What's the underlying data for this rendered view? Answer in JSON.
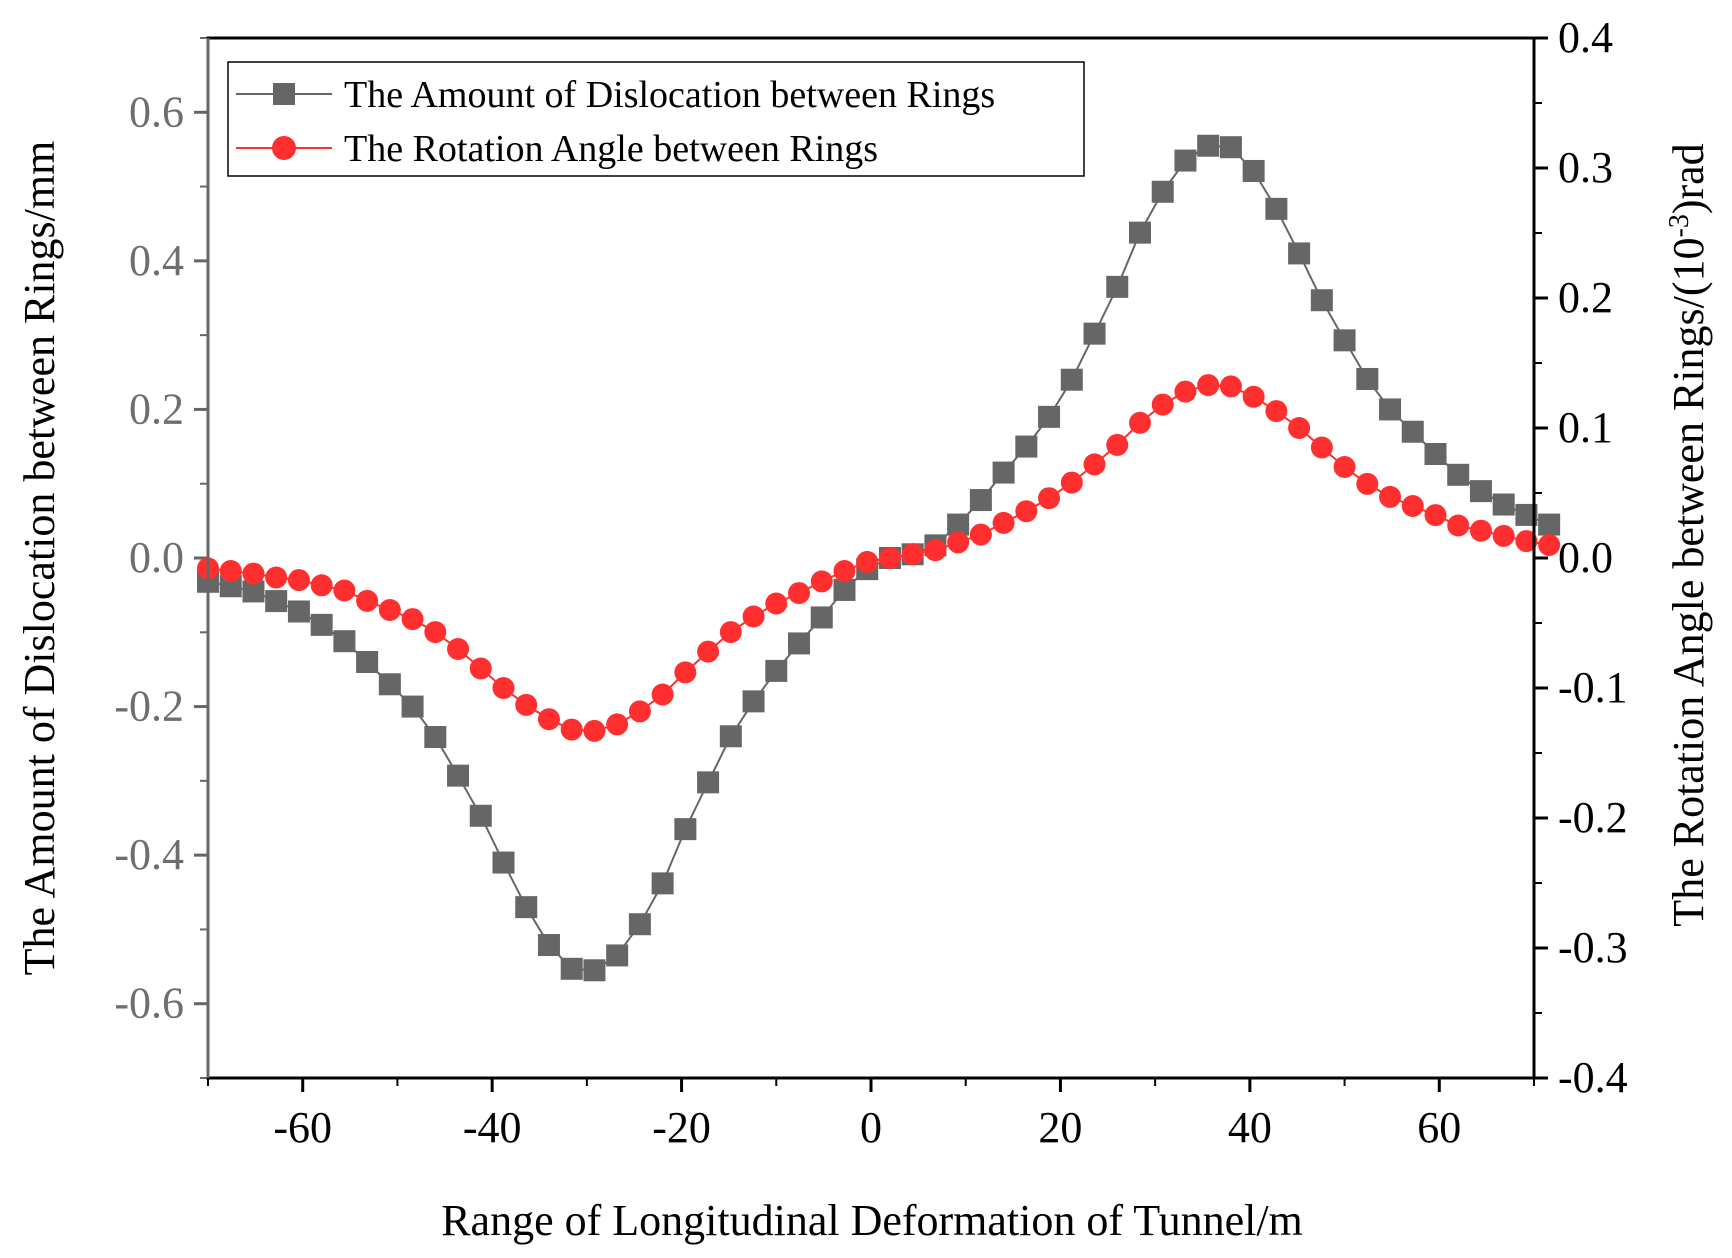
{
  "chart_data": {
    "type": "line",
    "title": "",
    "xlabel": "Range of Longitudinal Deformation of Tunnel/m",
    "ylabel_left": "The Amount of Dislocation between Rings/mm",
    "ylabel_right_prefix": "The Rotation Angle between Rings/(10",
    "ylabel_right_sup": "-3",
    "ylabel_right_suffix": ")rad",
    "xlim": [
      -70,
      70
    ],
    "ylim_left": [
      -0.7,
      0.7
    ],
    "ylim_right": [
      -0.4,
      0.4
    ],
    "x_ticks": [
      -60,
      -40,
      -20,
      0,
      20,
      40,
      60
    ],
    "y_left_ticks": [
      -0.6,
      -0.4,
      -0.2,
      0.0,
      0.2,
      0.4,
      0.6
    ],
    "y_right_ticks": [
      -0.4,
      -0.3,
      -0.2,
      -0.1,
      0.0,
      0.1,
      0.2,
      0.3,
      0.4
    ],
    "y_left_tick_labels": [
      "-0.6",
      "-0.4",
      "-0.2",
      "0.0",
      "0.2",
      "0.4",
      "0.6"
    ],
    "y_right_tick_labels": [
      "-0.4",
      "-0.3",
      "-0.2",
      "-0.1",
      "0.0",
      "0.1",
      "0.2",
      "0.3",
      "0.4"
    ],
    "x_tick_labels": [
      "-60",
      "-40",
      "-20",
      "0",
      "20",
      "40",
      "60"
    ],
    "legend_position": "top-left",
    "series": [
      {
        "name": "The Amount of Dislocation between Rings",
        "axis": "left",
        "color": "#666666",
        "marker": "square",
        "x": [
          -70.0,
          -67.6,
          -65.2,
          -62.8,
          -60.4,
          -58.0,
          -55.6,
          -53.2,
          -50.8,
          -48.4,
          -46.0,
          -43.6,
          -41.2,
          -38.8,
          -36.4,
          -34.0,
          -31.6,
          -29.2,
          -26.8,
          -24.4,
          -22.0,
          -19.6,
          -17.2,
          -14.8,
          -12.4,
          -10.0,
          -7.6,
          -5.2,
          -2.8,
          -0.4,
          2.0,
          4.4,
          6.8,
          9.2,
          11.6,
          14.0,
          16.4,
          18.8,
          21.2,
          23.6,
          26.0,
          28.4,
          30.8,
          33.2,
          35.6,
          38.0,
          40.4,
          42.8,
          45.2,
          47.6,
          50.0,
          52.4,
          54.8,
          57.2,
          59.6,
          62.0,
          64.4,
          66.8,
          69.2,
          71.6
        ],
        "y": [
          -0.032,
          -0.038,
          -0.045,
          -0.058,
          -0.072,
          -0.09,
          -0.112,
          -0.14,
          -0.17,
          -0.2,
          -0.241,
          -0.293,
          -0.347,
          -0.41,
          -0.47,
          -0.521,
          -0.553,
          -0.555,
          -0.535,
          -0.493,
          -0.438,
          -0.365,
          -0.302,
          -0.24,
          -0.193,
          -0.152,
          -0.115,
          -0.08,
          -0.043,
          -0.015,
          0.0,
          0.005,
          0.017,
          0.045,
          0.078,
          0.115,
          0.15,
          0.19,
          0.24,
          0.302,
          0.365,
          0.438,
          0.493,
          0.535,
          0.555,
          0.553,
          0.521,
          0.47,
          0.41,
          0.347,
          0.293,
          0.241,
          0.2,
          0.17,
          0.14,
          0.112,
          0.09,
          0.072,
          0.058,
          0.045
        ]
      },
      {
        "name": "The Rotation Angle between Rings",
        "axis": "right",
        "color": "#ff2f2f",
        "marker": "circle",
        "x": [
          -70.0,
          -67.6,
          -65.2,
          -62.8,
          -60.4,
          -58.0,
          -55.6,
          -53.2,
          -50.8,
          -48.4,
          -46.0,
          -43.6,
          -41.2,
          -38.8,
          -36.4,
          -34.0,
          -31.6,
          -29.2,
          -26.8,
          -24.4,
          -22.0,
          -19.6,
          -17.2,
          -14.8,
          -12.4,
          -10.0,
          -7.6,
          -5.2,
          -2.8,
          -0.4,
          2.0,
          4.4,
          6.8,
          9.2,
          11.6,
          14.0,
          16.4,
          18.8,
          21.2,
          23.6,
          26.0,
          28.4,
          30.8,
          33.2,
          35.6,
          38.0,
          40.4,
          42.8,
          45.2,
          47.6,
          50.0,
          52.4,
          54.8,
          57.2,
          59.6,
          62.0,
          64.4,
          66.8,
          69.2,
          71.6
        ],
        "y": [
          -0.008,
          -0.01,
          -0.012,
          -0.015,
          -0.017,
          -0.021,
          -0.025,
          -0.033,
          -0.04,
          -0.047,
          -0.057,
          -0.07,
          -0.085,
          -0.1,
          -0.113,
          -0.124,
          -0.132,
          -0.133,
          -0.128,
          -0.118,
          -0.105,
          -0.088,
          -0.072,
          -0.057,
          -0.045,
          -0.035,
          -0.027,
          -0.018,
          -0.01,
          -0.003,
          0.0,
          0.003,
          0.006,
          0.012,
          0.018,
          0.027,
          0.036,
          0.046,
          0.058,
          0.072,
          0.087,
          0.104,
          0.118,
          0.128,
          0.133,
          0.132,
          0.124,
          0.113,
          0.1,
          0.085,
          0.07,
          0.057,
          0.047,
          0.04,
          0.033,
          0.025,
          0.021,
          0.017,
          0.013,
          0.01
        ]
      }
    ]
  }
}
